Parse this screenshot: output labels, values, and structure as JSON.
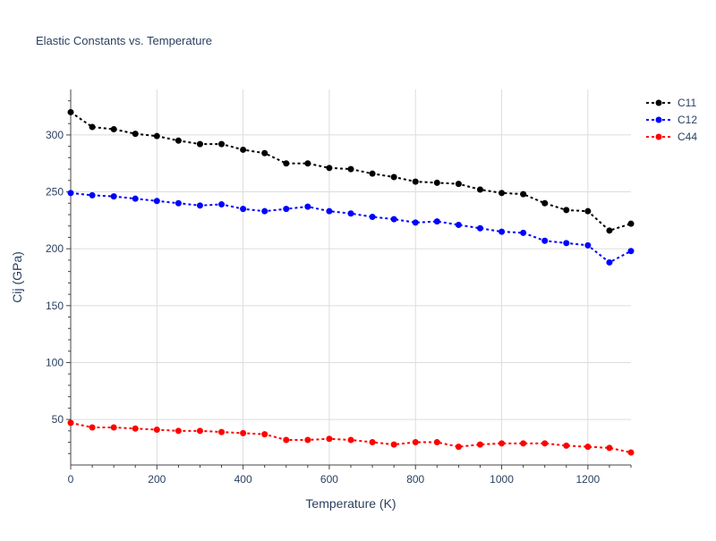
{
  "chart_data": {
    "type": "line",
    "title": "Elastic Constants vs. Temperature",
    "xlabel": "Temperature (K)",
    "ylabel": "Cij (GPa)",
    "xlim": [
      0,
      1300
    ],
    "ylim": [
      10,
      340
    ],
    "xticks": [
      0,
      200,
      400,
      600,
      800,
      1000,
      1200
    ],
    "yticks": [
      50,
      100,
      150,
      200,
      250,
      300
    ],
    "grid": true,
    "legend_position": "top-right",
    "x": [
      0,
      50,
      100,
      150,
      200,
      250,
      300,
      350,
      400,
      450,
      500,
      550,
      600,
      650,
      700,
      750,
      800,
      850,
      900,
      950,
      1000,
      1050,
      1100,
      1150,
      1200,
      1250,
      1300
    ],
    "series": [
      {
        "name": "C11",
        "color": "#000000",
        "values": [
          320,
          307,
          305,
          301,
          299,
          295,
          292,
          292,
          287,
          284,
          275,
          275,
          271,
          270,
          266,
          263,
          259,
          258,
          257,
          252,
          249,
          248,
          240,
          234,
          233,
          216,
          222
        ]
      },
      {
        "name": "C12",
        "color": "#0000ff",
        "values": [
          249,
          247,
          246,
          244,
          242,
          240,
          238,
          239,
          235,
          233,
          235,
          237,
          233,
          231,
          228,
          226,
          223,
          224,
          221,
          218,
          215,
          214,
          207,
          205,
          203,
          188,
          198
        ]
      },
      {
        "name": "C44",
        "color": "#ff0000",
        "values": [
          47,
          43,
          43,
          42,
          41,
          40,
          40,
          39,
          38,
          37,
          32,
          32,
          33,
          32,
          30,
          28,
          30,
          30,
          26,
          28,
          29,
          29,
          29,
          27,
          26,
          25,
          21
        ]
      }
    ]
  }
}
